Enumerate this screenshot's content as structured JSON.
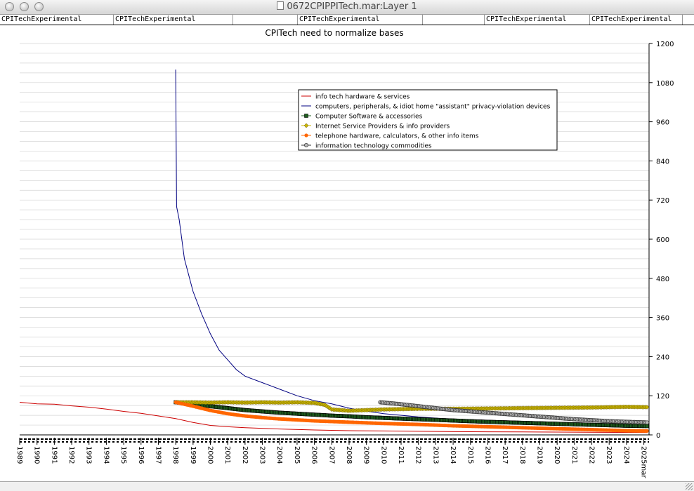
{
  "window": {
    "title": "0672CPIPPITech.mar:Layer 1"
  },
  "tabs": [
    "CPITechExperimental",
    "CPITechExperimental",
    "",
    "CPITechExperimental",
    "",
    "CPITechExperimental",
    "CPITechExperimental"
  ],
  "chart_data": {
    "type": "line",
    "title": "CPITech need to normalize bases",
    "xlabel": "",
    "ylabel": "",
    "ylim": [
      0,
      1200
    ],
    "yticks": [
      0,
      120,
      240,
      360,
      480,
      600,
      720,
      840,
      960,
      1080,
      1200
    ],
    "xlim": [
      1989,
      2025.3
    ],
    "xticks": [
      "1989",
      "1990",
      "1991",
      "1992",
      "1993",
      "1994",
      "1995",
      "1996",
      "1997",
      "1998",
      "1999",
      "2000",
      "2001",
      "2002",
      "2003",
      "2004",
      "2005",
      "2006",
      "2007",
      "2008",
      "2009",
      "2010",
      "2011",
      "2012",
      "2013",
      "2014",
      "2015",
      "2016",
      "2017",
      "2018",
      "2019",
      "2020",
      "2021",
      "2022",
      "2023",
      "2024",
      "2025mar"
    ],
    "grid": true,
    "legend_position": "top-right",
    "series": [
      {
        "name": "info tech hardware & services",
        "color": "#cc0000",
        "marker": "none",
        "x": [
          1989,
          1990,
          1991,
          1992,
          1993,
          1994,
          1995,
          1996,
          1997,
          1998,
          1999,
          2000,
          2001,
          2002,
          2004,
          2006,
          2008,
          2010,
          2012,
          2014,
          2016,
          2018,
          2020,
          2022,
          2024,
          2025.2
        ],
        "values": [
          100,
          95,
          94,
          89,
          85,
          79,
          72,
          66,
          58,
          50,
          38,
          29,
          25,
          22,
          18,
          15,
          13,
          12,
          11,
          10,
          9.5,
          9,
          8.5,
          8,
          7.5,
          7
        ]
      },
      {
        "name": "computers, peripherals, & idiot home \"assistant\" privacy-violation devices",
        "color": "#000080",
        "marker": "none",
        "x": [
          1998.0,
          1998.05,
          1998.2,
          1998.5,
          1999.0,
          1999.5,
          2000.0,
          2000.5,
          2001.0,
          2001.5,
          2002.0,
          2003.0,
          2004.0,
          2005.0,
          2006.0,
          2007.0,
          2008.0,
          2008.7,
          2010,
          2012,
          2014,
          2016,
          2018,
          2020,
          2022,
          2024,
          2025.2
        ],
        "values": [
          1120,
          700,
          660,
          540,
          440,
          370,
          310,
          260,
          230,
          200,
          180,
          160,
          140,
          120,
          105,
          95,
          82,
          75,
          65,
          55,
          48,
          42,
          38,
          35,
          32,
          30,
          29
        ]
      },
      {
        "name": "Computer Software & accessories",
        "color": "#1f5f1f",
        "marker": "square",
        "x": [
          1998,
          1998.5,
          1999,
          2000,
          2001,
          2002,
          2003,
          2004,
          2005,
          2006,
          2007,
          2008,
          2009,
          2010,
          2012,
          2014,
          2016,
          2018,
          2020,
          2022,
          2024,
          2025.2
        ],
        "values": [
          100,
          97,
          95,
          88,
          82,
          76,
          72,
          68,
          65,
          62,
          59,
          57,
          54,
          52,
          48,
          44,
          40,
          37,
          34,
          31,
          28,
          27
        ]
      },
      {
        "name": "Internet Service Providers & info providers",
        "color": "#c8b400",
        "marker": "diamond",
        "x": [
          1998,
          1999,
          2000,
          2001,
          2002,
          2003,
          2004,
          2005,
          2006,
          2006.6,
          2007,
          2008,
          2009,
          2010,
          2012,
          2014,
          2016,
          2018,
          2020,
          2022,
          2024,
          2025.2
        ],
        "values": [
          100,
          100,
          99,
          100,
          99,
          100,
          99,
          100,
          98,
          92,
          78,
          74,
          76,
          78,
          80,
          80,
          81,
          82,
          83,
          84,
          86,
          85
        ]
      },
      {
        "name": "telephone hardware, calculators, & other info items",
        "color": "#ff6600",
        "marker": "star",
        "x": [
          1998,
          1999,
          2000,
          2001,
          2002,
          2003,
          2004,
          2005,
          2006,
          2008,
          2010,
          2012,
          2014,
          2016,
          2018,
          2020,
          2022,
          2024,
          2025.2
        ],
        "values": [
          100,
          88,
          75,
          65,
          58,
          53,
          49,
          46,
          43,
          39,
          35,
          32,
          28,
          25,
          22,
          19,
          16,
          13,
          12
        ]
      },
      {
        "name": "information technology commodities",
        "color": "#333333",
        "marker": "circle",
        "x": [
          2009.8,
          2010,
          2011,
          2012,
          2013,
          2014,
          2015,
          2016,
          2017,
          2018,
          2019,
          2020,
          2021,
          2022,
          2023,
          2024,
          2025.2
        ],
        "values": [
          100,
          99,
          94,
          88,
          82,
          76,
          72,
          68,
          64,
          60,
          56,
          52,
          48,
          45,
          42,
          40,
          38
        ]
      }
    ]
  }
}
